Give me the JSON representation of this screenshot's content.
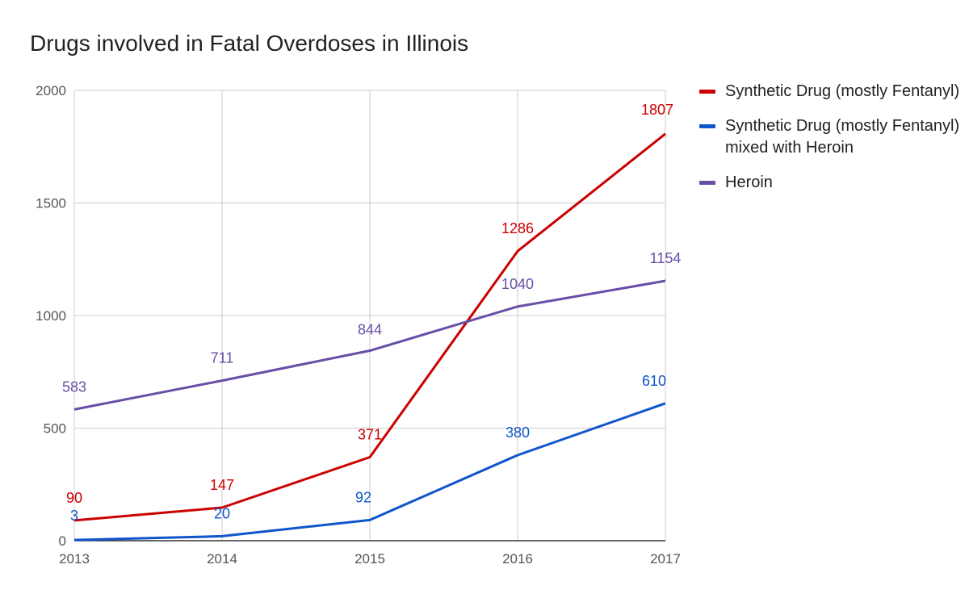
{
  "chart_data": {
    "type": "line",
    "title": "Drugs involved in Fatal Overdoses in Illinois",
    "x": [
      "2013",
      "2014",
      "2015",
      "2016",
      "2017"
    ],
    "ylim": [
      0,
      2000
    ],
    "yticks": [
      "0",
      "500",
      "1000",
      "1500",
      "2000"
    ],
    "grid": true,
    "legend_position": "right",
    "series": [
      {
        "name": "Synthetic Drug (mostly Fentanyl)",
        "color": "#cc0000",
        "values": [
          90,
          147,
          371,
          1286,
          1807
        ]
      },
      {
        "name": "Synthetic Drug (mostly Fentanyl) mixed with Heroin",
        "color": "#1155cc",
        "values": [
          3,
          20,
          92,
          380,
          610
        ]
      },
      {
        "name": "Heroin",
        "color": "#674ea7",
        "values": [
          583,
          711,
          844,
          1040,
          1154
        ]
      }
    ]
  }
}
